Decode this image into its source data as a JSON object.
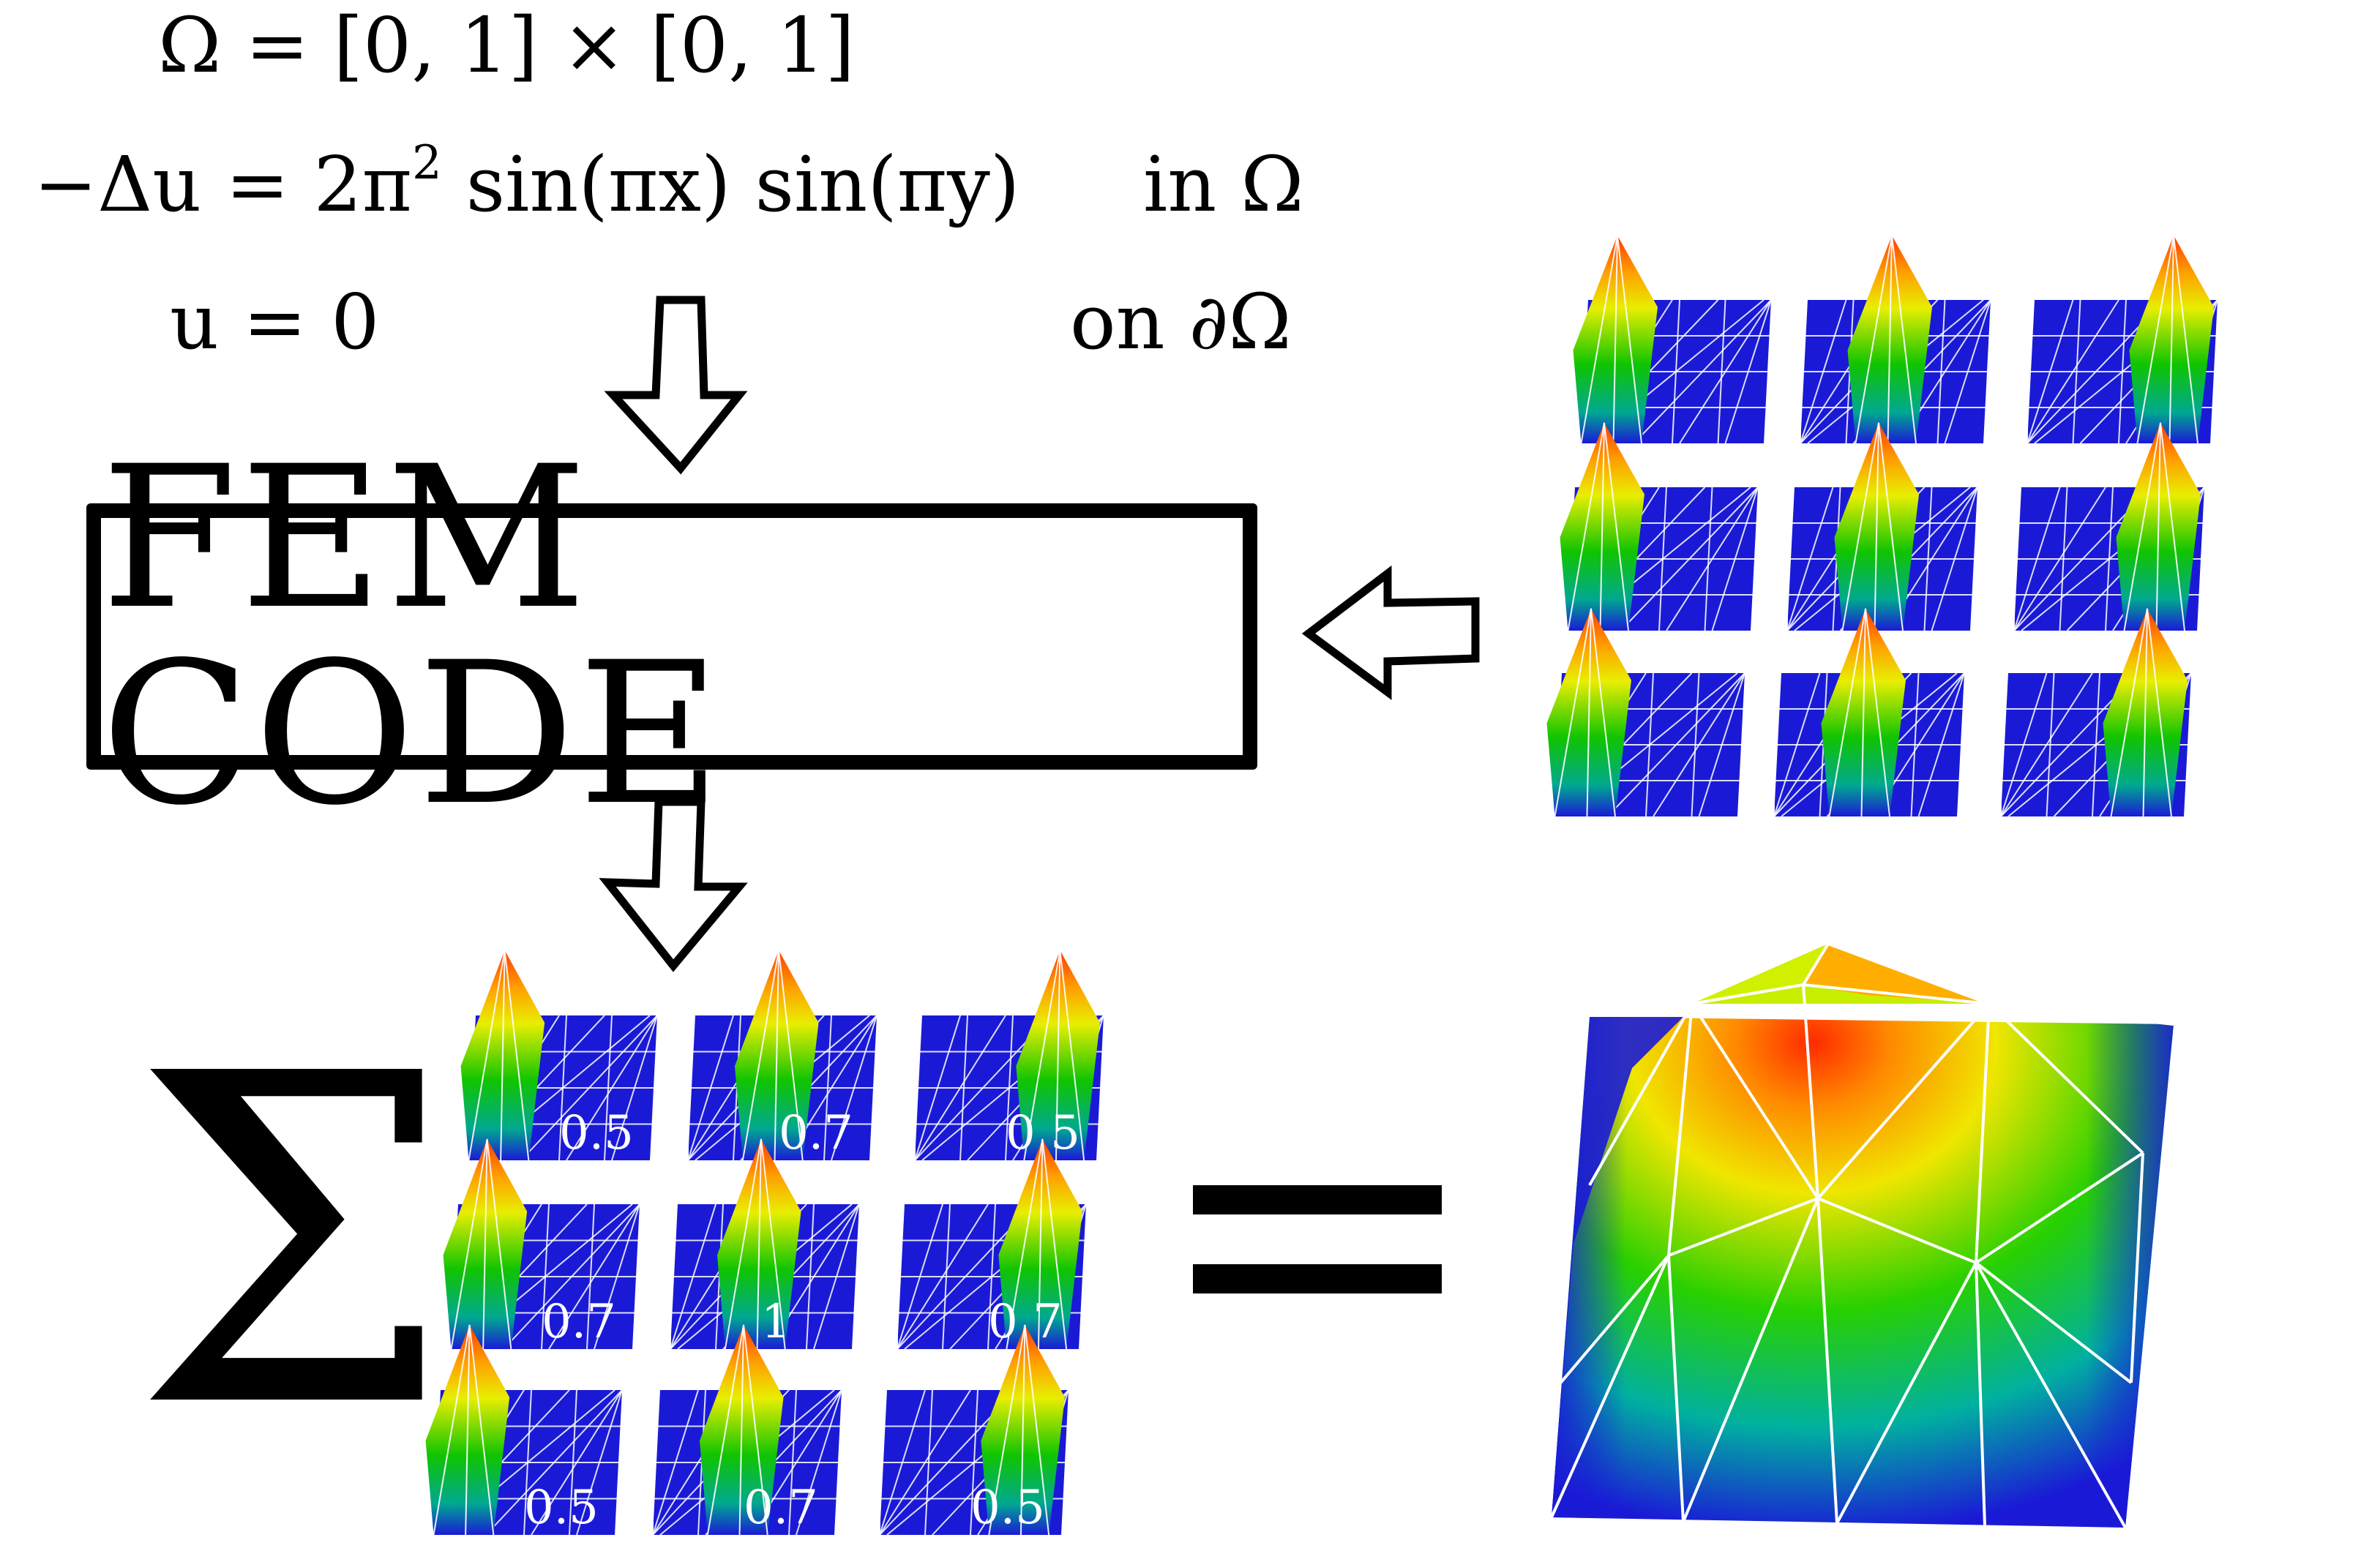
{
  "equations": {
    "domain": "Ω = [0, 1] × [0, 1]",
    "pde_lhs": "−Δu = 2π",
    "pde_exp": "2",
    "pde_rhs": " sin(πx) sin(πy)",
    "pde_where": "in Ω",
    "bc": "u = 0",
    "bc_where": "on ∂Ω"
  },
  "fem_box": {
    "label": "FEM CODE"
  },
  "sum_symbol": "Σ",
  "equals_symbol": "=",
  "basis_functions": {
    "rows": 3,
    "cols": 3,
    "peak_row_order": [
      "top",
      "middle",
      "bottom"
    ],
    "peak_col_order": [
      "left",
      "center",
      "right"
    ]
  },
  "coefficients": [
    [
      "0.5",
      "0.7",
      "0.5"
    ],
    [
      "0.7",
      "1",
      "0.7"
    ],
    [
      "0.5",
      "0.7",
      "0.5"
    ]
  ],
  "colors": {
    "mesh_base": "#1a1ad6",
    "mesh_lines": "#ffffff",
    "peak_hot": "#ff3a00",
    "peak_mid": "#e8ee00",
    "peak_low": "#10c400",
    "outline": "#000000"
  }
}
